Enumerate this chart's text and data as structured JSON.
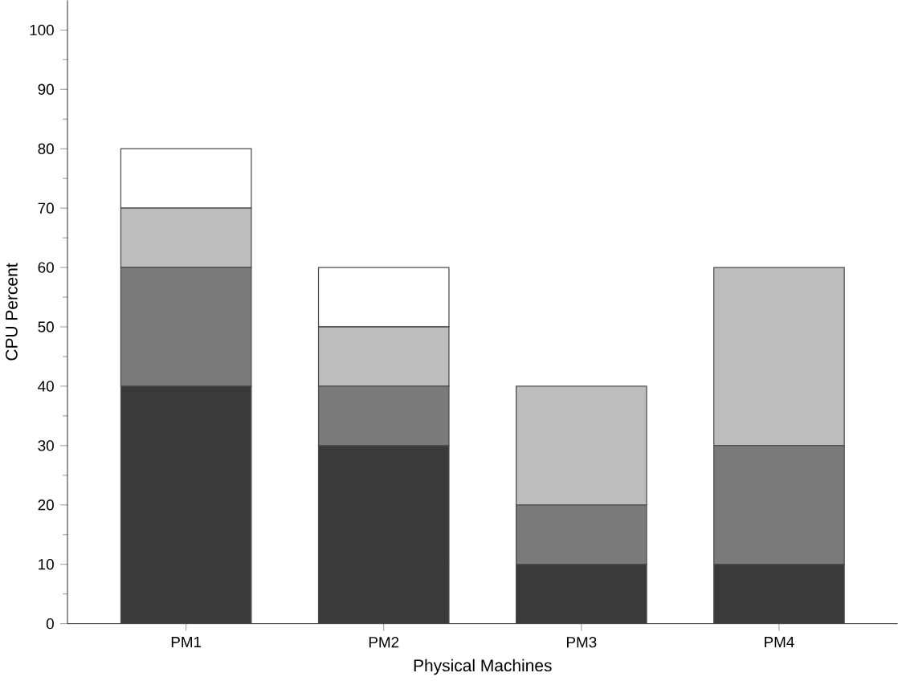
{
  "chart_data": {
    "type": "bar",
    "stacked": true,
    "xlabel": "Physical Machines",
    "ylabel": "CPU Percent",
    "categories": [
      "PM1",
      "PM2",
      "PM3",
      "PM4"
    ],
    "series": [
      {
        "color": "#3a3a3a",
        "values": [
          40,
          30,
          10,
          10
        ]
      },
      {
        "color": "#7a7a7a",
        "values": [
          20,
          10,
          10,
          20
        ]
      },
      {
        "color": "#bdbdbd",
        "values": [
          10,
          10,
          20,
          30
        ]
      },
      {
        "color": "#ffffff",
        "values": [
          10,
          10,
          0,
          0
        ]
      }
    ],
    "ylim": [
      0,
      105
    ],
    "yticks": [
      0,
      10,
      20,
      30,
      40,
      50,
      60,
      70,
      80,
      90,
      100
    ]
  }
}
